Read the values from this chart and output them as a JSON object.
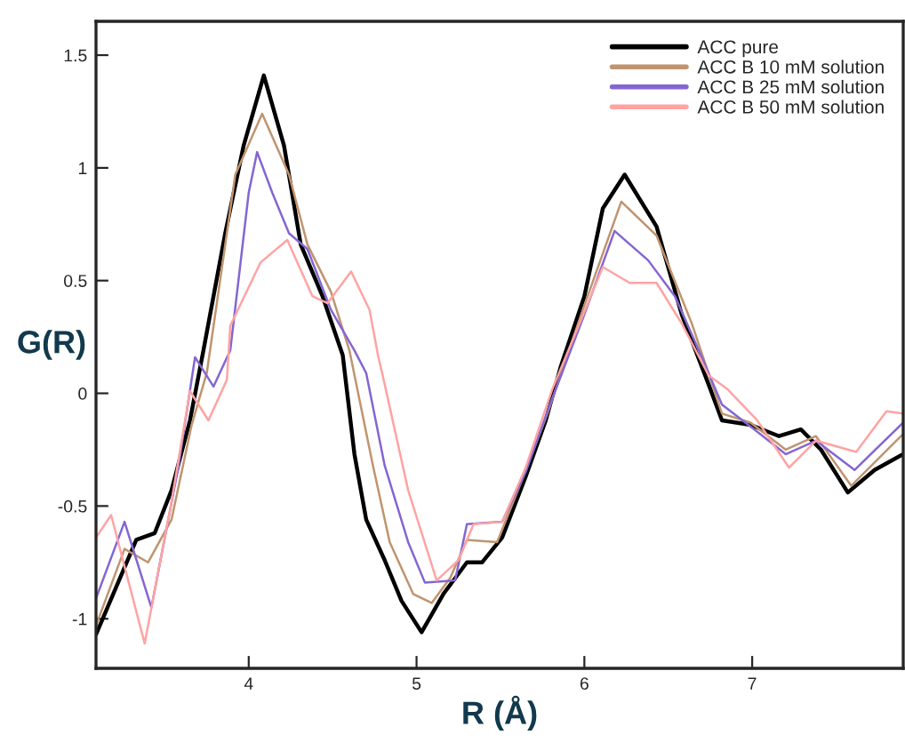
{
  "chart_data": {
    "type": "line",
    "xlabel": "R (Å)",
    "ylabel": "G(R)",
    "xlim": [
      3.09,
      7.9
    ],
    "ylim": [
      -1.22,
      1.65
    ],
    "xticks": [
      4,
      5,
      6,
      7
    ],
    "yticks": [
      {
        "value": -1,
        "label": "-1"
      },
      {
        "value": -0.5,
        "label": "-0.5"
      },
      0,
      0.5,
      1,
      1.5
    ],
    "legend": "top right",
    "grid": false,
    "line_style": "solid",
    "marker": "none",
    "series": [
      {
        "name": "ACC pure",
        "color": "#000000",
        "x": [
          3.09,
          3.33,
          3.44,
          3.54,
          3.65,
          3.73,
          3.86,
          3.97,
          4.09,
          4.21,
          4.31,
          4.44,
          4.56,
          4.63,
          4.7,
          4.81,
          4.91,
          5.03,
          5.16,
          5.3,
          5.39,
          5.51,
          5.65,
          5.77,
          5.86,
          6.0,
          6.11,
          6.24,
          6.43,
          6.58,
          6.74,
          6.82,
          6.99,
          7.16,
          7.29,
          7.41,
          7.57,
          7.73,
          7.9
        ],
        "values": [
          -1.07,
          -0.65,
          -0.62,
          -0.43,
          -0.12,
          0.19,
          0.71,
          1.1,
          1.41,
          1.1,
          0.66,
          0.43,
          0.17,
          -0.27,
          -0.56,
          -0.74,
          -0.92,
          -1.06,
          -0.89,
          -0.75,
          -0.75,
          -0.64,
          -0.37,
          -0.12,
          0.12,
          0.43,
          0.82,
          0.97,
          0.74,
          0.35,
          0.04,
          -0.12,
          -0.14,
          -0.19,
          -0.16,
          -0.25,
          -0.44,
          -0.34,
          -0.27
        ]
      },
      {
        "name": "ACC B 10 mM solution",
        "color": "#c0946e",
        "x": [
          3.09,
          3.26,
          3.4,
          3.54,
          3.66,
          3.75,
          3.92,
          4.08,
          4.24,
          4.35,
          4.49,
          4.6,
          4.74,
          4.84,
          4.98,
          5.09,
          5.2,
          5.3,
          5.48,
          5.62,
          5.78,
          6.0,
          6.22,
          6.43,
          6.64,
          6.82,
          6.99,
          7.2,
          7.38,
          7.59,
          7.9
        ],
        "values": [
          -1.03,
          -0.69,
          -0.75,
          -0.56,
          -0.14,
          0.09,
          0.97,
          1.24,
          0.97,
          0.66,
          0.45,
          0.19,
          -0.32,
          -0.66,
          -0.89,
          -0.93,
          -0.82,
          -0.65,
          -0.66,
          -0.4,
          -0.09,
          0.39,
          0.85,
          0.7,
          0.31,
          -0.09,
          -0.13,
          -0.25,
          -0.19,
          -0.41,
          -0.18
        ]
      },
      {
        "name": "ACC B 25 mM solution",
        "color": "#8466d2",
        "x": [
          3.09,
          3.26,
          3.42,
          3.58,
          3.68,
          3.79,
          3.89,
          4.0,
          4.05,
          4.14,
          4.24,
          4.35,
          4.49,
          4.63,
          4.7,
          4.81,
          4.95,
          5.05,
          5.23,
          5.3,
          5.51,
          5.65,
          5.79,
          6.0,
          6.18,
          6.38,
          6.54,
          6.7,
          6.82,
          7.03,
          7.2,
          7.38,
          7.61,
          7.9
        ],
        "values": [
          -0.91,
          -0.57,
          -0.95,
          -0.33,
          0.16,
          0.03,
          0.19,
          0.89,
          1.07,
          0.89,
          0.71,
          0.64,
          0.37,
          0.19,
          0.09,
          -0.32,
          -0.66,
          -0.84,
          -0.83,
          -0.58,
          -0.57,
          -0.35,
          -0.06,
          0.35,
          0.72,
          0.59,
          0.43,
          0.16,
          -0.05,
          -0.17,
          -0.27,
          -0.21,
          -0.34,
          -0.13
        ]
      },
      {
        "name": "ACC B 50 mM solution",
        "color": "#ffa3a3",
        "x": [
          3.09,
          3.18,
          3.38,
          3.54,
          3.65,
          3.76,
          3.87,
          3.89,
          4.07,
          4.23,
          4.38,
          4.47,
          4.61,
          4.72,
          4.77,
          4.81,
          4.95,
          5.12,
          5.25,
          5.34,
          5.51,
          5.65,
          5.81,
          6.11,
          6.27,
          6.43,
          6.58,
          6.74,
          6.85,
          7.03,
          7.22,
          7.38,
          7.62,
          7.8,
          7.9
        ],
        "values": [
          -0.64,
          -0.54,
          -1.11,
          -0.48,
          0.01,
          -0.12,
          0.06,
          0.3,
          0.58,
          0.68,
          0.43,
          0.4,
          0.54,
          0.37,
          0.17,
          0.04,
          -0.43,
          -0.83,
          -0.74,
          -0.58,
          -0.57,
          -0.33,
          0.02,
          0.56,
          0.49,
          0.49,
          0.31,
          0.08,
          0.02,
          -0.12,
          -0.33,
          -0.21,
          -0.26,
          -0.08,
          -0.09
        ]
      }
    ]
  }
}
